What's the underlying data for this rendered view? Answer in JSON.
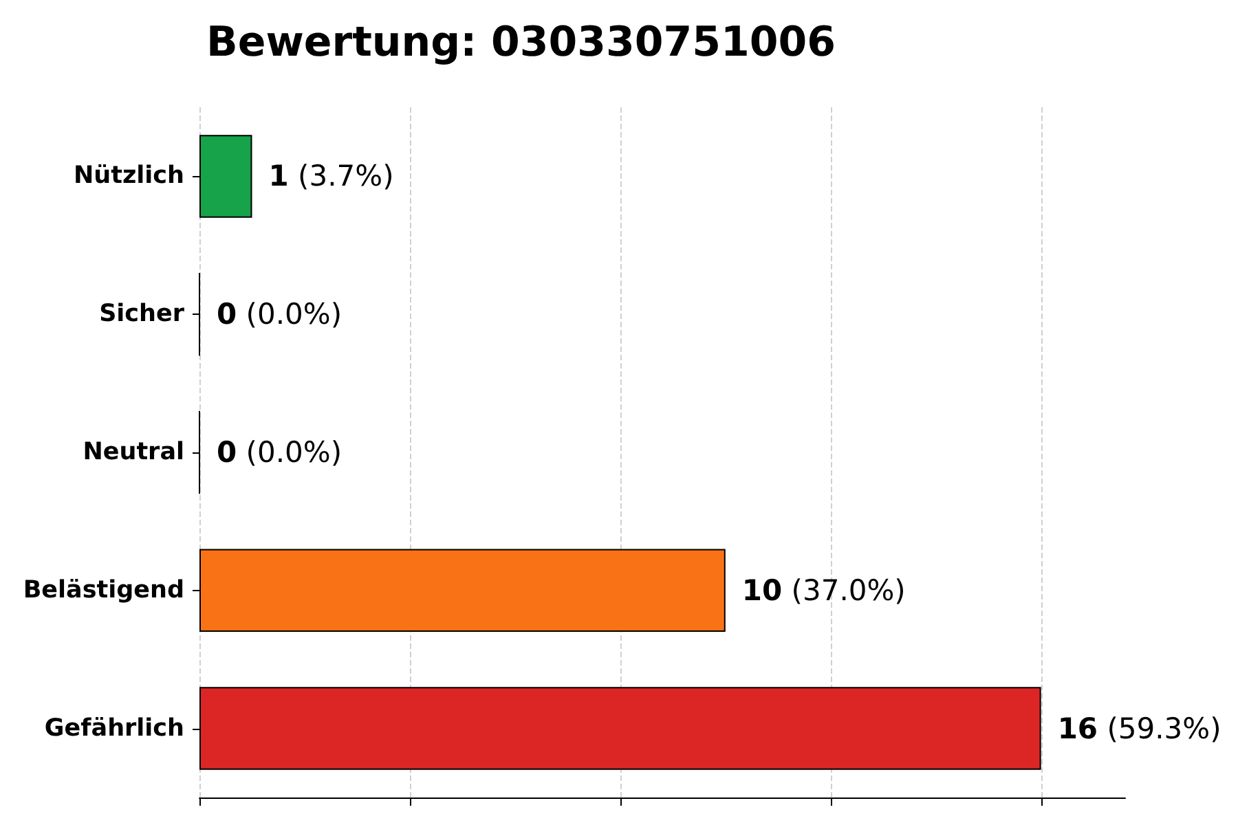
{
  "chart_data": {
    "type": "bar",
    "orientation": "horizontal",
    "title": "Bewertung: 030330751006",
    "categories": [
      "Nützlich",
      "Sicher",
      "Neutral",
      "Belästigend",
      "Gefährlich"
    ],
    "values": [
      1,
      0,
      0,
      10,
      16
    ],
    "colors": [
      "#16a34a",
      "#000000",
      "#000000",
      "#f97316",
      "#dc2626"
    ],
    "value_labels": [
      "1 (3.7%)",
      "0 (0.0%)",
      "0 (0.0%)",
      "10 (37.0%)",
      "16 (59.3%)"
    ],
    "xlim": [
      0,
      17.6
    ],
    "xticks": [
      {
        "value": 0,
        "label": null
      },
      {
        "value": 4,
        "label": null
      },
      {
        "value": 8,
        "label": null
      },
      {
        "value": 12,
        "label": null
      },
      {
        "value": 16,
        "label": null
      }
    ],
    "grid": "x",
    "tick_labels": "y"
  }
}
